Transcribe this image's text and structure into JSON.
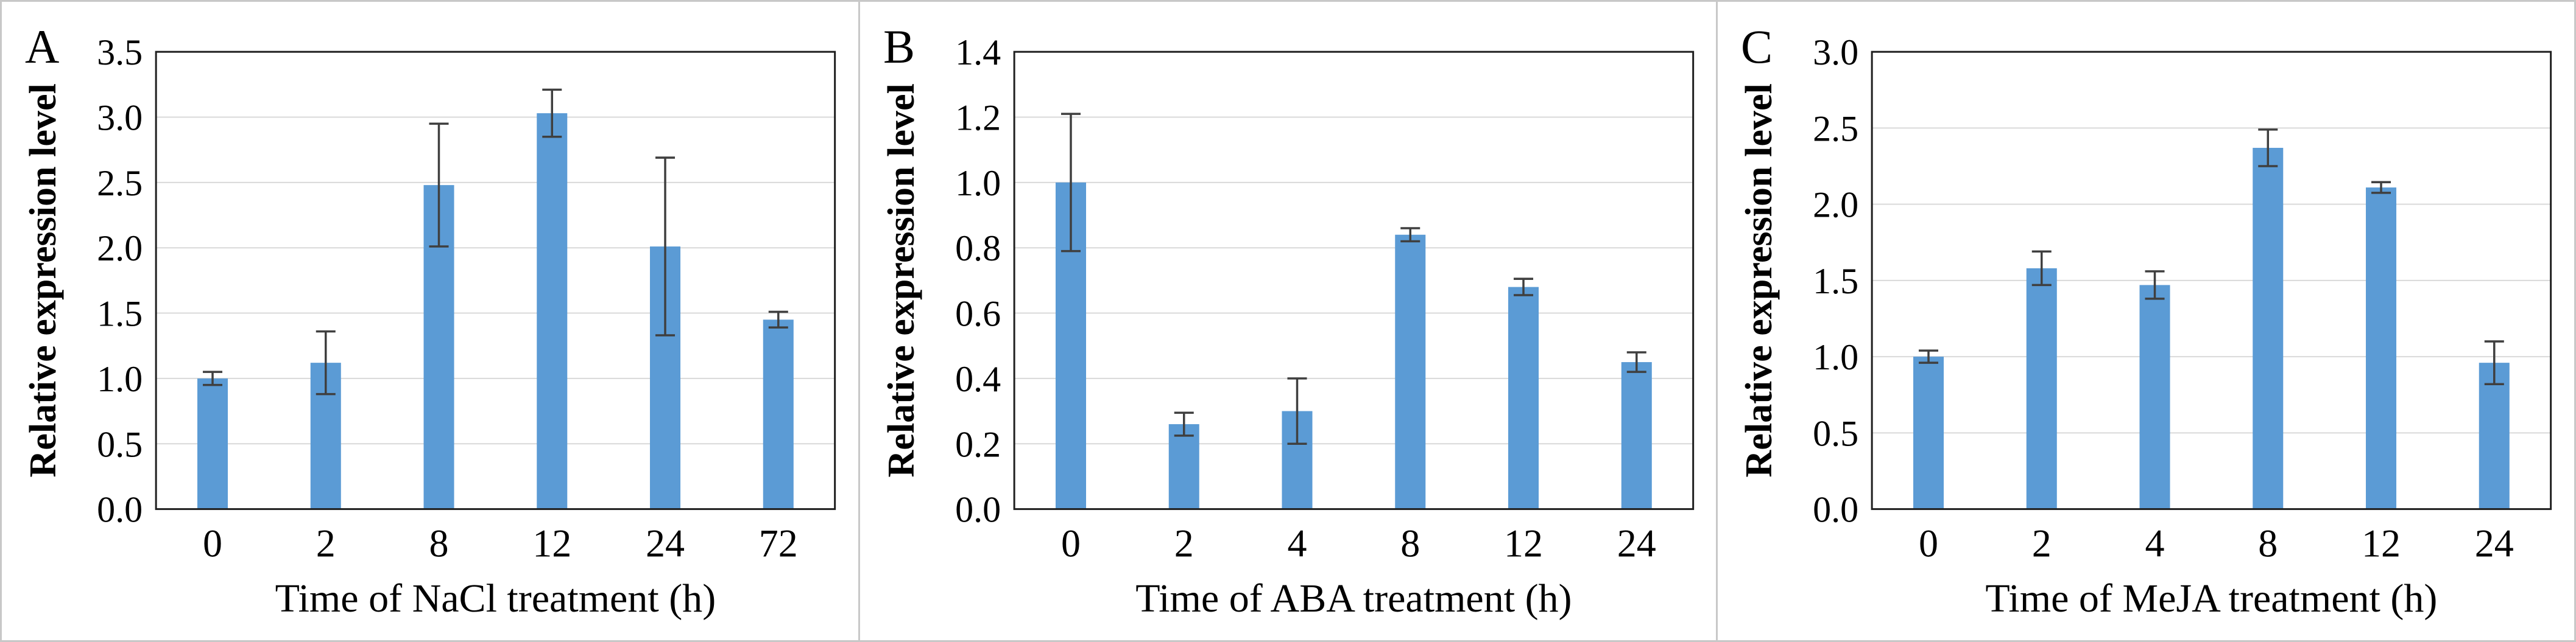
{
  "figure": {
    "description_visible_text_only": true,
    "panel_count": 3
  },
  "style": {
    "bar_color": "#5B9BD5",
    "error_bar_color": "#3f3f3f",
    "plot_border_color": "#1f1f1f",
    "gridline_color": "#d9d9d9",
    "outer_border_color": "#c8c8c8",
    "text_color": "#000000",
    "background_color": "#ffffff"
  },
  "chart_data": [
    {
      "type": "bar",
      "panel_label": "A",
      "title": "",
      "categories": [
        "0",
        "2",
        "8",
        "12",
        "24",
        "72"
      ],
      "values": [
        1.0,
        1.12,
        2.48,
        3.03,
        2.01,
        1.45
      ],
      "errors": [
        0.05,
        0.24,
        0.47,
        0.18,
        0.68,
        0.06
      ],
      "xlabel": "Time of  NaCl treatment (h)",
      "ylabel": "Relative expression level",
      "ylim": [
        0,
        3.5
      ],
      "ytick_step": 0.5,
      "ytick_labels": [
        "0.0",
        "0.5",
        "1.0",
        "1.5",
        "2.0",
        "2.5",
        "3.0",
        "3.5"
      ],
      "grid": "horizontal",
      "legend": "none"
    },
    {
      "type": "bar",
      "panel_label": "B",
      "title": "",
      "categories": [
        "0",
        "2",
        "4",
        "8",
        "12",
        "24"
      ],
      "values": [
        1.0,
        0.26,
        0.3,
        0.84,
        0.68,
        0.45
      ],
      "errors": [
        0.21,
        0.035,
        0.1,
        0.02,
        0.025,
        0.03
      ],
      "xlabel": "Time of  ABA treatment (h)",
      "ylabel": "Relative expression level",
      "ylim": [
        0,
        1.4
      ],
      "ytick_step": 0.2,
      "ytick_labels": [
        "0.0",
        "0.2",
        "0.4",
        "0.6",
        "0.8",
        "1.0",
        "1.2",
        "1.4"
      ],
      "grid": "horizontal",
      "legend": "none"
    },
    {
      "type": "bar",
      "panel_label": "C",
      "title": "",
      "categories": [
        "0",
        "2",
        "4",
        "8",
        "12",
        "24"
      ],
      "values": [
        1.0,
        1.58,
        1.47,
        2.37,
        2.11,
        0.96
      ],
      "errors": [
        0.04,
        0.11,
        0.09,
        0.12,
        0.035,
        0.14
      ],
      "xlabel": "Time of  MeJA treatment (h)",
      "ylabel": "Relative expression level",
      "ylim": [
        0,
        3.0
      ],
      "ytick_step": 0.5,
      "ytick_labels": [
        "0.0",
        "0.5",
        "1.0",
        "1.5",
        "2.0",
        "2.5",
        "3.0"
      ],
      "grid": "horizontal",
      "legend": "none"
    }
  ]
}
